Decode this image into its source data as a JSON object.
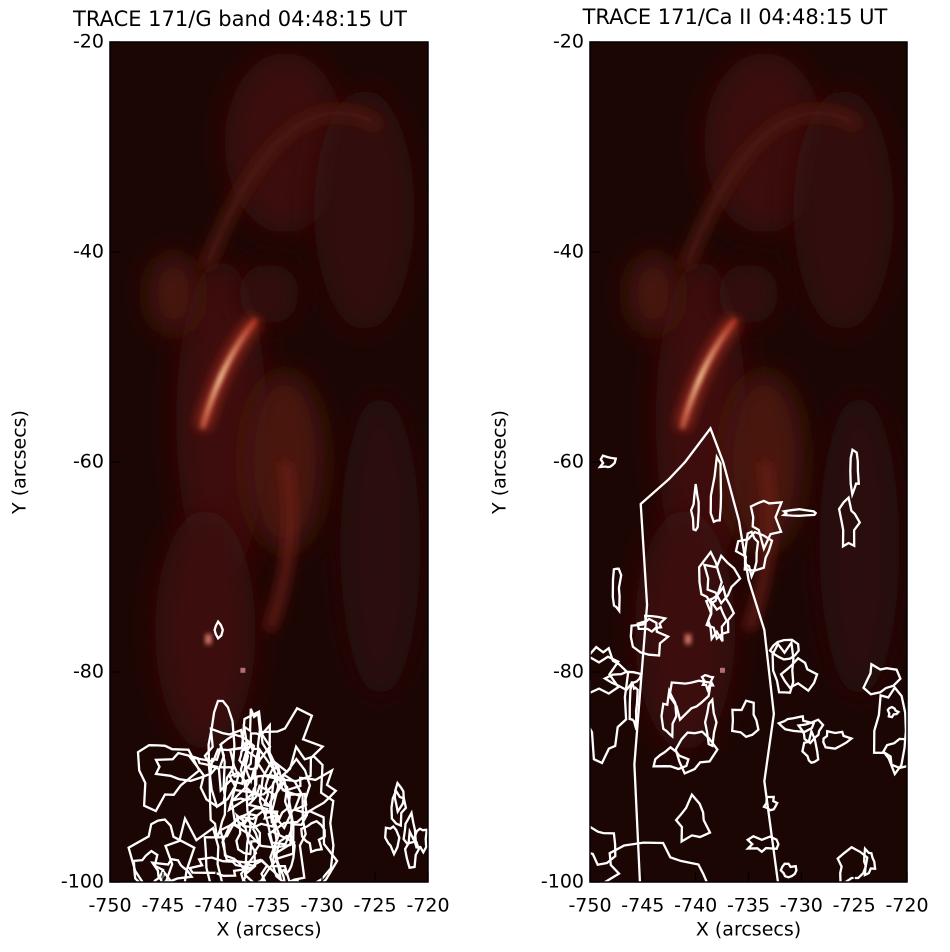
{
  "chart_data": [
    {
      "type": "image",
      "title": "TRACE 171/G band 04:48:15 UT",
      "x_label": "X (arcsecs)",
      "y_label": "Y (arcsecs)",
      "xlim": [
        -750,
        -720
      ],
      "ylim": [
        -100,
        -20
      ],
      "xticks": [
        -750,
        -745,
        -740,
        -735,
        -730,
        -725,
        -720
      ],
      "yticks": [
        -100,
        -80,
        -60,
        -40,
        -20
      ]
    },
    {
      "type": "image",
      "title": "TRACE 171/Ca II 04:48:15 UT",
      "x_label": "X (arcsecs)",
      "y_label": "Y (arcsecs)",
      "xlim": [
        -750,
        -720
      ],
      "ylim": [
        -100,
        -20
      ],
      "xticks": [
        -750,
        -745,
        -740,
        -735,
        -730,
        -725,
        -720
      ],
      "yticks": [
        -100,
        -80,
        -60,
        -40,
        -20
      ]
    }
  ]
}
